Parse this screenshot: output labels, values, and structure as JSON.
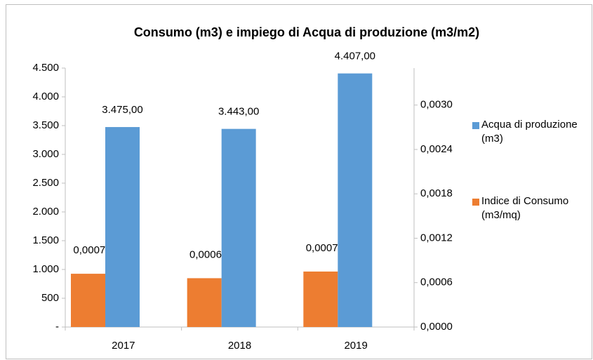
{
  "chart_data": {
    "type": "bar",
    "title": "Consumo (m3) e impiego di Acqua di produzione  (m3/m2)",
    "categories": [
      "2017",
      "2018",
      "2019"
    ],
    "series": [
      {
        "name": "Indice di Consumo (m3/mq)",
        "color": "#ed7d31",
        "axis": "y2",
        "values": [
          0.00072,
          0.00066,
          0.00075
        ],
        "value_labels": [
          "0,00072",
          "0,00066",
          "0,00075"
        ]
      },
      {
        "name": "Acqua di produzione (m3)",
        "color": "#5b9bd5",
        "values": [
          3475,
          3443,
          4407
        ],
        "value_labels": [
          "3.475,00",
          "3.443,00",
          "4.407,00"
        ]
      }
    ],
    "ylim": [
      0,
      4500
    ],
    "yticks": [
      {
        "value": 0,
        "label": "-"
      },
      500,
      {
        "value": 1000,
        "label": "1.000"
      },
      {
        "value": 1500,
        "label": "1.500"
      },
      {
        "value": 2000,
        "label": "2.000"
      },
      {
        "value": 2500,
        "label": "2.500"
      },
      {
        "value": 3000,
        "label": "3.000"
      },
      {
        "value": 3500,
        "label": "3.500"
      },
      {
        "value": 4000,
        "label": "4.000"
      },
      {
        "value": 4500,
        "label": "4.500"
      }
    ],
    "y2lim": [
      0,
      0.0035
    ],
    "y2ticks": [
      {
        "value": 0,
        "label": "0,0000"
      },
      {
        "value": 0.0006,
        "label": "0,0006"
      },
      {
        "value": 0.0012,
        "label": "0,0012"
      },
      {
        "value": 0.0018,
        "label": "0,0018"
      },
      {
        "value": 0.0024,
        "label": "0,0024"
      },
      {
        "value": 0.003,
        "label": "0,0030"
      }
    ],
    "legend": "right",
    "grid": false
  }
}
